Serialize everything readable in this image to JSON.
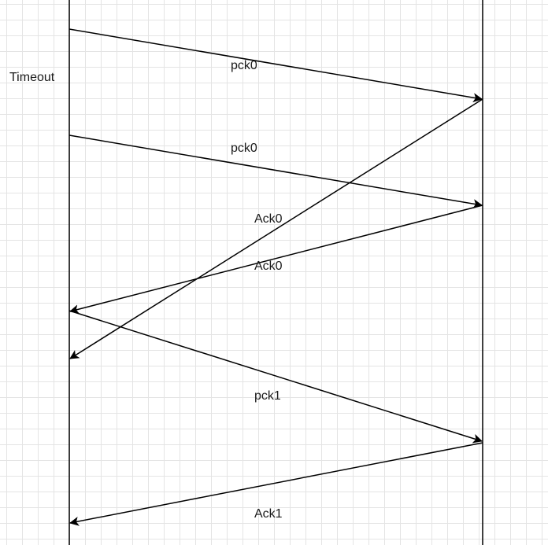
{
  "diagram": {
    "timeout_label": "Timeout",
    "messages": [
      {
        "label": "pck0"
      },
      {
        "label": "pck0"
      },
      {
        "label": "Ack0"
      },
      {
        "label": "Ack0"
      },
      {
        "label": "pck1"
      },
      {
        "label": "Ack1"
      }
    ]
  }
}
